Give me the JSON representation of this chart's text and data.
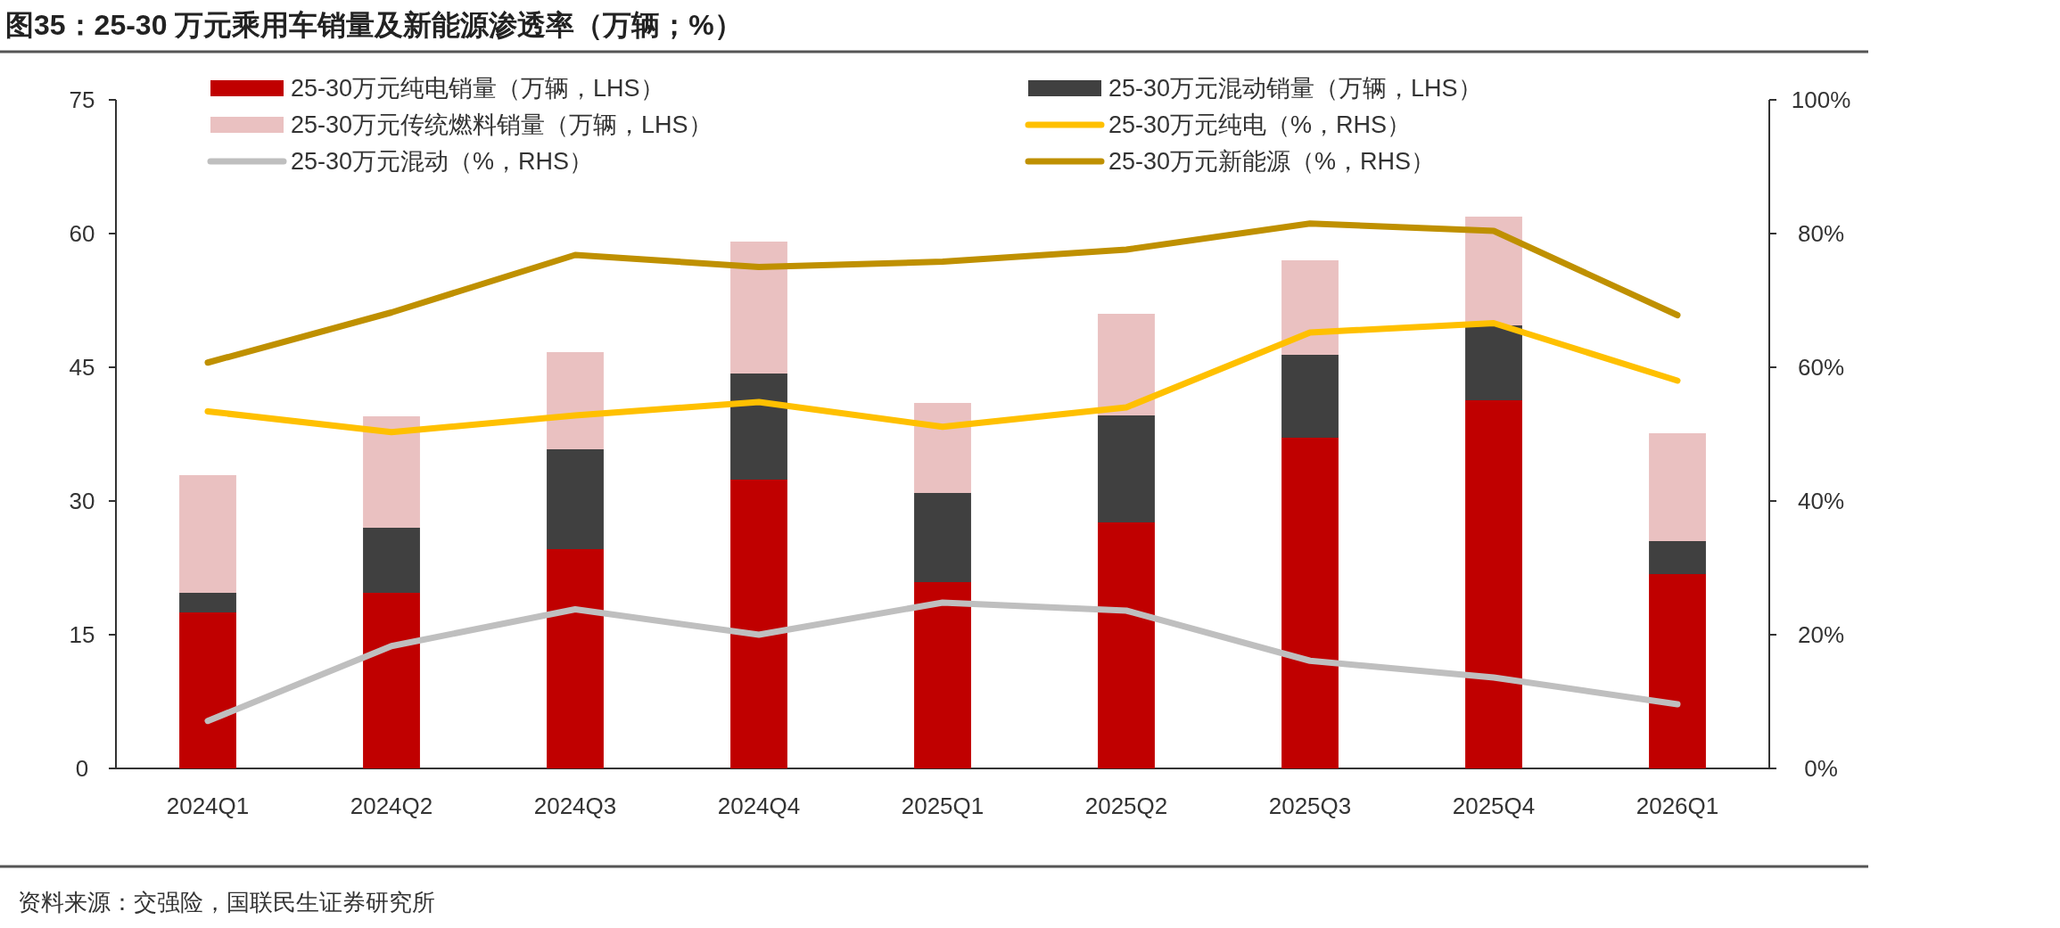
{
  "chart_data": {
    "type": "bar",
    "title": "图35：25-30 万元乘用车销量及新能源渗透率（万辆；%）",
    "categories": [
      "2024Q1",
      "2024Q2",
      "2024Q3",
      "2024Q4",
      "2025Q1",
      "2025Q2",
      "2025Q3",
      "2025Q4",
      "2026Q1"
    ],
    "stacked": true,
    "series": [
      {
        "name": "25-30万元纯电销量（万辆，LHS）",
        "color": "#c00000",
        "values": [
          17.5,
          19.7,
          24.6,
          32.4,
          20.9,
          27.6,
          37.1,
          41.3,
          21.8
        ]
      },
      {
        "name": "25-30万元混动销量（万辆，LHS）",
        "color": "#404040",
        "values": [
          2.2,
          7.3,
          11.2,
          11.9,
          10.0,
          12.0,
          9.3,
          8.4,
          3.7
        ]
      },
      {
        "name": "25-30万元传统燃料销量（万辆，LHS）",
        "color": "#eac1c1",
        "values": [
          13.2,
          12.5,
          10.9,
          14.8,
          10.1,
          11.4,
          10.6,
          12.2,
          12.1
        ]
      },
      {
        "name": "25-30万元纯电（%，RHS）",
        "type": "line",
        "axis": "y2",
        "color": "#ffc000",
        "values": [
          53.4,
          50.3,
          52.8,
          54.8,
          51.1,
          54.0,
          65.2,
          66.6,
          58.0
        ]
      },
      {
        "name": "25-30万元混动（%，RHS）",
        "type": "line",
        "axis": "y2",
        "color": "#bfbfbf",
        "values": [
          7.1,
          18.3,
          23.8,
          20.0,
          24.8,
          23.6,
          16.1,
          13.6,
          9.6
        ]
      },
      {
        "name": "25-30万元新能源（%，RHS）",
        "type": "line",
        "axis": "y2",
        "color": "#bf9000",
        "values": [
          60.7,
          68.2,
          76.8,
          75.0,
          75.8,
          77.6,
          81.5,
          80.4,
          67.8
        ]
      }
    ],
    "ylim": [
      0,
      75
    ],
    "yticks": [
      0,
      15,
      30,
      45,
      60,
      75
    ],
    "y2lim": [
      0,
      100
    ],
    "y2ticks": [
      {
        "value": 0,
        "label": "0%"
      },
      {
        "value": 20,
        "label": "20%"
      },
      {
        "value": 40,
        "label": "40%"
      },
      {
        "value": 60,
        "label": "60%"
      },
      {
        "value": 80,
        "label": "80%"
      },
      {
        "value": 100,
        "label": "100%"
      }
    ],
    "legend": "top",
    "annotations": [
      "资料来源：交强险，国联民生证券研究所"
    ]
  }
}
